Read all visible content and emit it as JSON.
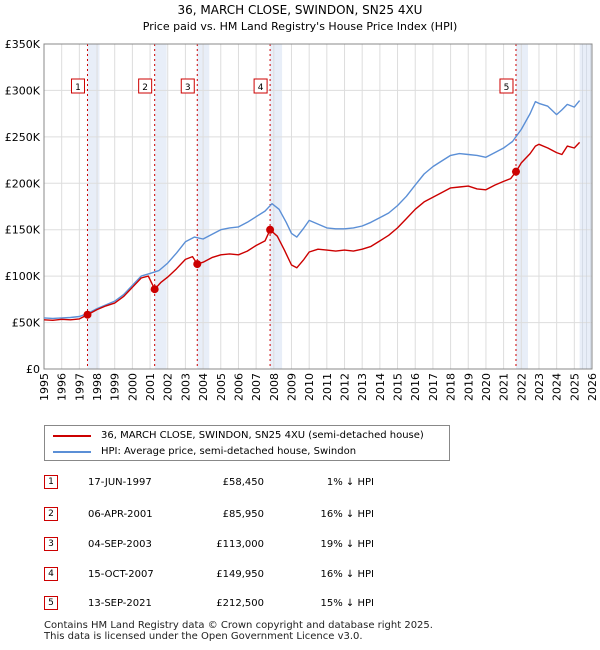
{
  "chart_data": {
    "type": "line",
    "title": "36, MARCH CLOSE, SWINDON, SN25 4XU",
    "subtitle": "Price paid vs. HM Land Registry's House Price Index (HPI)",
    "x_ticks": [
      "1995",
      "1996",
      "1997",
      "1998",
      "1999",
      "2000",
      "2001",
      "2002",
      "2003",
      "2004",
      "2005",
      "2006",
      "2007",
      "2008",
      "2009",
      "2010",
      "2011",
      "2012",
      "2013",
      "2014",
      "2015",
      "2016",
      "2017",
      "2018",
      "2019",
      "2020",
      "2021",
      "2022",
      "2023",
      "2024",
      "2025",
      "2026"
    ],
    "y_ticks": [
      "£0",
      "£50K",
      "£100K",
      "£150K",
      "£200K",
      "£250K",
      "£300K",
      "£350K"
    ],
    "xlim": [
      1995,
      2026
    ],
    "ylim": [
      0,
      350000
    ],
    "series": [
      {
        "name": "36, MARCH CLOSE, SWINDON, SN25 4XU (semi-detached house)",
        "color": "#cc0000",
        "points": [
          [
            1995.0,
            53000
          ],
          [
            1995.5,
            52500
          ],
          [
            1996.0,
            53500
          ],
          [
            1996.5,
            53000
          ],
          [
            1997.0,
            54000
          ],
          [
            1997.46,
            58450
          ],
          [
            1998.0,
            64000
          ],
          [
            1998.5,
            68000
          ],
          [
            1999.0,
            71000
          ],
          [
            1999.5,
            78000
          ],
          [
            2000.0,
            88000
          ],
          [
            2000.5,
            98000
          ],
          [
            2000.9,
            100000
          ],
          [
            2001.26,
            85950
          ],
          [
            2001.6,
            93000
          ],
          [
            2002.0,
            99000
          ],
          [
            2002.5,
            108000
          ],
          [
            2003.0,
            118000
          ],
          [
            2003.4,
            121000
          ],
          [
            2003.67,
            113000
          ],
          [
            2004.0,
            115000
          ],
          [
            2004.5,
            120000
          ],
          [
            2005.0,
            123000
          ],
          [
            2005.5,
            124000
          ],
          [
            2006.0,
            123000
          ],
          [
            2006.5,
            127000
          ],
          [
            2007.0,
            133000
          ],
          [
            2007.5,
            138000
          ],
          [
            2007.79,
            149950
          ],
          [
            2008.2,
            143000
          ],
          [
            2008.6,
            128000
          ],
          [
            2009.0,
            112000
          ],
          [
            2009.3,
            109000
          ],
          [
            2009.7,
            118000
          ],
          [
            2010.0,
            126000
          ],
          [
            2010.5,
            129000
          ],
          [
            2011.0,
            128000
          ],
          [
            2011.5,
            127000
          ],
          [
            2012.0,
            128000
          ],
          [
            2012.5,
            127000
          ],
          [
            2013.0,
            129000
          ],
          [
            2013.5,
            132000
          ],
          [
            2014.0,
            138000
          ],
          [
            2014.5,
            144000
          ],
          [
            2015.0,
            152000
          ],
          [
            2015.5,
            162000
          ],
          [
            2016.0,
            172000
          ],
          [
            2016.5,
            180000
          ],
          [
            2017.0,
            185000
          ],
          [
            2017.5,
            190000
          ],
          [
            2018.0,
            195000
          ],
          [
            2018.5,
            196000
          ],
          [
            2019.0,
            197000
          ],
          [
            2019.5,
            194000
          ],
          [
            2020.0,
            193000
          ],
          [
            2020.5,
            198000
          ],
          [
            2021.0,
            202000
          ],
          [
            2021.4,
            205000
          ],
          [
            2021.7,
            212500
          ],
          [
            2022.0,
            222000
          ],
          [
            2022.5,
            232000
          ],
          [
            2022.8,
            240000
          ],
          [
            2023.0,
            242000
          ],
          [
            2023.5,
            238000
          ],
          [
            2024.0,
            233000
          ],
          [
            2024.3,
            231000
          ],
          [
            2024.6,
            240000
          ],
          [
            2025.0,
            238000
          ],
          [
            2025.3,
            244000
          ]
        ]
      },
      {
        "name": "HPI: Average price, semi-detached house, Swindon",
        "color": "#5b8fd6",
        "points": [
          [
            1995.0,
            55000
          ],
          [
            1995.5,
            54500
          ],
          [
            1996.0,
            55000
          ],
          [
            1996.5,
            55500
          ],
          [
            1997.0,
            56500
          ],
          [
            1997.5,
            60000
          ],
          [
            1998.0,
            65000
          ],
          [
            1998.5,
            69000
          ],
          [
            1999.0,
            73000
          ],
          [
            1999.5,
            80000
          ],
          [
            2000.0,
            90000
          ],
          [
            2000.5,
            100000
          ],
          [
            2001.0,
            103000
          ],
          [
            2001.5,
            106000
          ],
          [
            2002.0,
            114000
          ],
          [
            2002.5,
            125000
          ],
          [
            2003.0,
            137000
          ],
          [
            2003.5,
            142000
          ],
          [
            2004.0,
            140000
          ],
          [
            2004.5,
            145000
          ],
          [
            2005.0,
            150000
          ],
          [
            2005.5,
            152000
          ],
          [
            2006.0,
            153000
          ],
          [
            2006.5,
            158000
          ],
          [
            2007.0,
            164000
          ],
          [
            2007.5,
            170000
          ],
          [
            2007.9,
            178000
          ],
          [
            2008.3,
            172000
          ],
          [
            2008.7,
            158000
          ],
          [
            2009.0,
            146000
          ],
          [
            2009.3,
            142000
          ],
          [
            2009.7,
            152000
          ],
          [
            2010.0,
            160000
          ],
          [
            2010.5,
            156000
          ],
          [
            2011.0,
            152000
          ],
          [
            2011.5,
            151000
          ],
          [
            2012.0,
            151000
          ],
          [
            2012.5,
            152000
          ],
          [
            2013.0,
            154000
          ],
          [
            2013.5,
            158000
          ],
          [
            2014.0,
            163000
          ],
          [
            2014.5,
            168000
          ],
          [
            2015.0,
            176000
          ],
          [
            2015.5,
            186000
          ],
          [
            2016.0,
            198000
          ],
          [
            2016.5,
            210000
          ],
          [
            2017.0,
            218000
          ],
          [
            2017.5,
            224000
          ],
          [
            2018.0,
            230000
          ],
          [
            2018.5,
            232000
          ],
          [
            2019.0,
            231000
          ],
          [
            2019.5,
            230000
          ],
          [
            2020.0,
            228000
          ],
          [
            2020.5,
            233000
          ],
          [
            2021.0,
            238000
          ],
          [
            2021.5,
            245000
          ],
          [
            2022.0,
            258000
          ],
          [
            2022.5,
            275000
          ],
          [
            2022.8,
            288000
          ],
          [
            2023.0,
            286000
          ],
          [
            2023.5,
            283000
          ],
          [
            2024.0,
            274000
          ],
          [
            2024.3,
            279000
          ],
          [
            2024.6,
            285000
          ],
          [
            2025.0,
            282000
          ],
          [
            2025.3,
            289000
          ]
        ]
      }
    ],
    "sales": [
      {
        "label": "1",
        "x": 1997.46,
        "price": 58450
      },
      {
        "label": "2",
        "x": 2001.26,
        "price": 85950
      },
      {
        "label": "3",
        "x": 2003.67,
        "price": 113000
      },
      {
        "label": "4",
        "x": 2007.79,
        "price": 149950
      },
      {
        "label": "5",
        "x": 2021.7,
        "price": 212500
      }
    ],
    "forecast_from": 2025.3
  },
  "legend": {
    "property_label": "36, MARCH CLOSE, SWINDON, SN25 4XU (semi-detached house)",
    "hpi_label": "HPI: Average price, semi-detached house, Swindon",
    "property_color": "#cc0000",
    "hpi_color": "#5b8fd6"
  },
  "sales_table": [
    {
      "num": "1",
      "date": "17-JUN-1997",
      "price": "£58,450",
      "hpi": "1% ↓ HPI"
    },
    {
      "num": "2",
      "date": "06-APR-2001",
      "price": "£85,950",
      "hpi": "16% ↓ HPI"
    },
    {
      "num": "3",
      "date": "04-SEP-2003",
      "price": "£113,000",
      "hpi": "19% ↓ HPI"
    },
    {
      "num": "4",
      "date": "15-OCT-2007",
      "price": "£149,950",
      "hpi": "16% ↓ HPI"
    },
    {
      "num": "5",
      "date": "13-SEP-2021",
      "price": "£212,500",
      "hpi": "15% ↓ HPI"
    }
  ],
  "footer": {
    "line1": "Contains HM Land Registry data © Crown copyright and database right 2025.",
    "line2": "This data is licensed under the Open Government Licence v3.0."
  }
}
